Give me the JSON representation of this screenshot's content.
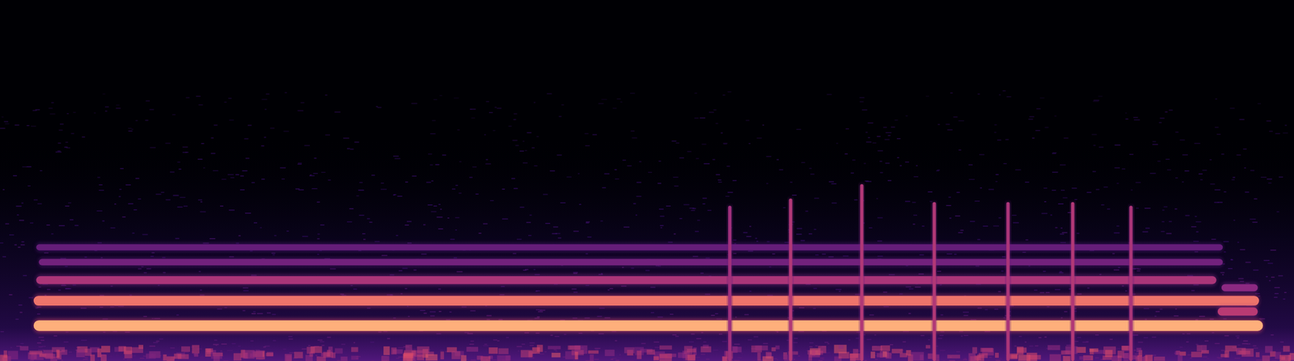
{
  "chart_data": {
    "type": "spectrogram",
    "xlim": [
      0,
      1
    ],
    "ylim": [
      0,
      1
    ],
    "clim": [
      0,
      1
    ],
    "tick_labels": false,
    "grid": false,
    "bands": [
      {
        "freq": 0.098,
        "start": 0.026,
        "end": 0.976,
        "level": 0.9
      },
      {
        "freq": 0.167,
        "start": 0.026,
        "end": 0.973,
        "level": 0.8
      },
      {
        "freq": 0.224,
        "start": 0.028,
        "end": 0.94,
        "level": 0.58
      },
      {
        "freq": 0.274,
        "start": 0.03,
        "end": 0.945,
        "level": 0.42
      },
      {
        "freq": 0.315,
        "start": 0.028,
        "end": 0.945,
        "level": 0.38
      },
      {
        "freq": 0.137,
        "start": 0.941,
        "end": 0.972,
        "level": 0.62
      },
      {
        "freq": 0.203,
        "start": 0.944,
        "end": 0.972,
        "level": 0.5
      }
    ],
    "clicks": [
      {
        "time": 0.564,
        "top": 0.43,
        "level": 0.55
      },
      {
        "time": 0.611,
        "top": 0.45,
        "level": 0.6
      },
      {
        "time": 0.666,
        "top": 0.49,
        "level": 0.6
      },
      {
        "time": 0.722,
        "top": 0.44,
        "level": 0.6
      },
      {
        "time": 0.779,
        "top": 0.44,
        "level": 0.58
      },
      {
        "time": 0.829,
        "top": 0.44,
        "level": 0.6
      },
      {
        "time": 0.874,
        "top": 0.43,
        "level": 0.58
      }
    ]
  }
}
